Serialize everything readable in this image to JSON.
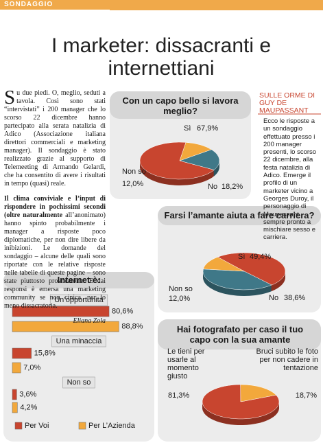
{
  "header": {
    "section": "SONDAGGIO",
    "title": "I marketer: dissacranti e internettiani"
  },
  "article": {
    "paragraph1": "Su due piedi. O, meglio, seduti a tavola. Così sono stati “intervistati” i 200 manager che lo scorso 22 dicembre hanno partecipato alla serata natalizia di Adico (Associazione italiana direttori commerciali e marketing manager). Il sondaggio è stato realizzato grazie al supporto di Telemeeting di Armando Gelardi, che ha consentito di avere i risultati in tempo (quasi) reale.",
    "paragraph2_bold": "Il clima conviviale e l’input di rispondere in pochissimi secondi (oltre naturalmente",
    "paragraph2": "all’anonimato) hanno spinto probabilmente i manager a risposte poco diplomatiche, per non dire libere da inibizioni. Le domande del sondaggio – alcune delle quali sono riportate con le relative risposte nelle tabelle di queste pagine – sono state piuttosto provocatorie. E dai responsi è emersa una marketing community se non cinica, per lo meno dissacratoria.",
    "author": "Eliana Zola"
  },
  "sidebar": {
    "title": "SULLE ORME DI GUY DE MAUPASSANT",
    "text": "Ecco le risposte a un sondaggio effettuato presso i 200 manager presenti, lo scorso 22 dicembre, alla festa natalizia di Adico. Emerge il profilo di un marketer vicino a Georges Duroy, il personaggio di Maupassant sempre pronto a mischiare sesso e carriera."
  },
  "chart_data": [
    {
      "type": "pie",
      "title": "Con un capo bello si lavora meglio?",
      "categories": [
        "Sì",
        "No",
        "Non so"
      ],
      "values": [
        67.9,
        18.2,
        12.0
      ],
      "value_labels": [
        "67,9%",
        "18,2%",
        "12,0%"
      ],
      "colors": [
        "#c8452f",
        "#3f7888",
        "#f2a83c"
      ]
    },
    {
      "type": "pie",
      "title": "Farsi l’amante aiuta a fare carriera?",
      "categories": [
        "Sì",
        "No",
        "Non so"
      ],
      "values": [
        49.4,
        38.6,
        12.0
      ],
      "value_labels": [
        "49,4%",
        "38,6%",
        "12,0%"
      ],
      "colors": [
        "#c8452f",
        "#3f7888",
        "#f2a83c"
      ]
    },
    {
      "type": "pie",
      "title": "Hai fotografato per caso il tuo capo con la sua amante",
      "categories": [
        "Le tieni per usarle al momento giusto",
        "Bruci subito le foto per non cadere in tentazione"
      ],
      "values": [
        81.3,
        18.7
      ],
      "value_labels": [
        "81,3%",
        "18,7%"
      ],
      "colors": [
        "#c8452f",
        "#f2a83c"
      ]
    },
    {
      "type": "bar",
      "title": "Internet è:",
      "categories": [
        "Un’opportunità",
        "Una minaccia",
        "Non so"
      ],
      "series": [
        {
          "name": "Per Voi",
          "color": "#c8452f",
          "values": [
            80.6,
            15.8,
            3.6
          ],
          "value_labels": [
            "80,6%",
            "15,8%",
            "3,6%"
          ]
        },
        {
          "name": "Per L’Azienda",
          "color": "#f2a83c",
          "values": [
            88.8,
            7.0,
            4.2
          ],
          "value_labels": [
            "88,8%",
            "7,0%",
            "4,2%"
          ]
        }
      ]
    }
  ]
}
